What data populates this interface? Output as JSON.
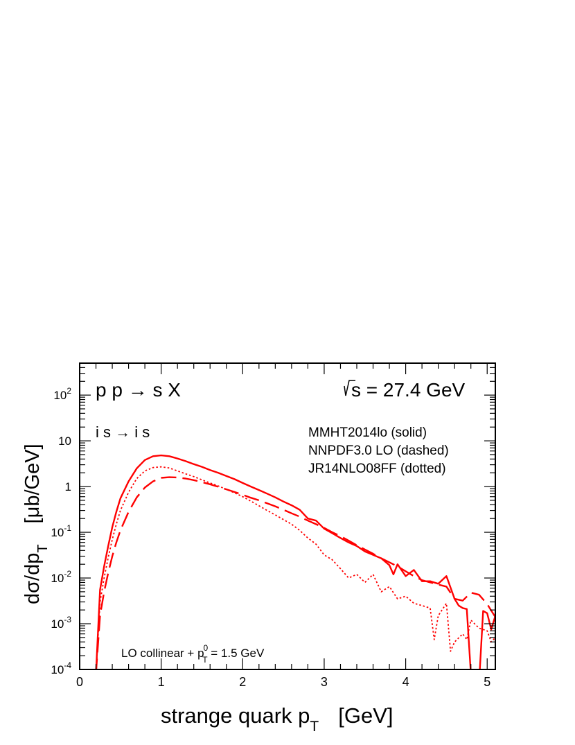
{
  "chart_data": {
    "type": "line",
    "title": "p p → s X",
    "energy_label": "s = 27.4 GeV",
    "subprocess_label": "i s → i s",
    "legend": [
      "MMHT2014lo  (solid)",
      "NNPDF3.0 LO (dashed)",
      "JR14NLO08FF (dotted)"
    ],
    "note": {
      "prefix": "LO collinear + p",
      "sup": "0",
      "sub": "T",
      "suffix": " = 1.5 GeV"
    },
    "xlabel": {
      "main": "strange quark p",
      "sub": "T",
      "unit": "[GeV]"
    },
    "ylabel": {
      "main": "dσ/dp",
      "sub": "T",
      "unit": "[μb/GeV]"
    },
    "xlim": [
      0,
      5.1
    ],
    "ylim": [
      0.0001,
      500
    ],
    "yscale": "log",
    "xticks": [
      0,
      1,
      2,
      3,
      4,
      5
    ],
    "xtick_labels": [
      "0",
      "1",
      "2",
      "3",
      "4",
      "5"
    ],
    "ytick_labels": [
      {
        "base": "10",
        "exp": "-4",
        "value": 0.0001
      },
      {
        "base": "10",
        "exp": "-3",
        "value": 0.001
      },
      {
        "base": "10",
        "exp": "-2",
        "value": 0.01
      },
      {
        "base": "10",
        "exp": "-1",
        "value": 0.1
      },
      {
        "base": "1",
        "exp": "",
        "value": 1
      },
      {
        "base": "10",
        "exp": "",
        "value": 10
      },
      {
        "base": "10",
        "exp": "2",
        "value": 100
      }
    ],
    "color": "#ff0000",
    "series": [
      {
        "style": "solid",
        "x": [
          0.2,
          0.25,
          0.3,
          0.35,
          0.4,
          0.45,
          0.5,
          0.6,
          0.7,
          0.8,
          0.9,
          1.0,
          1.1,
          1.2,
          1.3,
          1.4,
          1.5,
          1.6,
          1.7,
          1.8,
          1.9,
          2.0,
          2.1,
          2.2,
          2.3,
          2.4,
          2.5,
          2.6,
          2.7,
          2.8,
          2.9,
          3.0,
          3.1,
          3.2,
          3.3,
          3.4,
          3.5,
          3.6,
          3.7,
          3.8,
          3.85,
          3.9,
          4.0,
          4.1,
          4.2,
          4.3,
          4.4,
          4.5,
          4.6,
          4.65,
          4.7,
          4.75,
          4.8,
          4.85,
          4.9,
          4.95,
          5.0,
          5.05,
          5.1
        ],
        "y": [
          8e-05,
          0.0055,
          0.018,
          0.05,
          0.13,
          0.28,
          0.55,
          1.3,
          2.5,
          3.8,
          4.6,
          4.8,
          4.6,
          4.1,
          3.6,
          3.1,
          2.7,
          2.3,
          2.0,
          1.7,
          1.45,
          1.2,
          1.0,
          0.84,
          0.7,
          0.58,
          0.47,
          0.39,
          0.31,
          0.2,
          0.18,
          0.12,
          0.095,
          0.075,
          0.06,
          0.05,
          0.038,
          0.032,
          0.027,
          0.019,
          0.012,
          0.02,
          0.011,
          0.015,
          0.0085,
          0.0085,
          0.0075,
          0.011,
          0.0035,
          0.0025,
          0.0022,
          0.0021,
          8e-05,
          5e-05,
          5e-05,
          0.0019,
          0.0017,
          0.00075,
          0.0015
        ]
      },
      {
        "style": "dashed",
        "x": [
          0.2,
          0.25,
          0.3,
          0.35,
          0.4,
          0.45,
          0.5,
          0.6,
          0.7,
          0.8,
          0.9,
          1.0,
          1.1,
          1.2,
          1.3,
          1.4,
          1.5,
          1.6,
          1.7,
          1.8,
          1.9,
          2.0,
          2.1,
          2.2,
          2.3,
          2.4,
          2.5,
          2.6,
          2.7,
          2.8,
          2.9,
          3.0,
          3.1,
          3.2,
          3.3,
          3.4,
          3.5,
          3.6,
          3.7,
          3.8,
          3.9,
          4.0,
          4.1,
          4.2,
          4.3,
          4.4,
          4.5,
          4.6,
          4.7,
          4.8,
          4.9,
          5.0,
          5.1
        ],
        "y": [
          8e-05,
          0.0015,
          0.005,
          0.013,
          0.03,
          0.06,
          0.11,
          0.28,
          0.58,
          0.95,
          1.3,
          1.55,
          1.6,
          1.58,
          1.5,
          1.38,
          1.25,
          1.12,
          0.99,
          0.87,
          0.76,
          0.66,
          0.57,
          0.5,
          0.43,
          0.37,
          0.31,
          0.26,
          0.22,
          0.18,
          0.15,
          0.125,
          0.1,
          0.082,
          0.066,
          0.052,
          0.042,
          0.034,
          0.027,
          0.022,
          0.018,
          0.014,
          0.011,
          0.009,
          0.008,
          0.0072,
          0.0065,
          0.0035,
          0.0032,
          0.0048,
          0.0043,
          0.0027,
          0.0014
        ]
      },
      {
        "style": "dotted",
        "x": [
          0.2,
          0.25,
          0.3,
          0.35,
          0.4,
          0.45,
          0.5,
          0.6,
          0.7,
          0.8,
          0.9,
          1.0,
          1.1,
          1.2,
          1.3,
          1.4,
          1.5,
          1.6,
          1.7,
          1.8,
          1.9,
          2.0,
          2.1,
          2.2,
          2.3,
          2.4,
          2.5,
          2.6,
          2.7,
          2.8,
          2.9,
          3.0,
          3.1,
          3.2,
          3.3,
          3.4,
          3.5,
          3.6,
          3.7,
          3.8,
          3.9,
          4.0,
          4.1,
          4.2,
          4.3,
          4.35,
          4.4,
          4.5,
          4.55,
          4.6,
          4.7,
          4.75,
          4.8,
          4.9,
          5.0,
          5.05,
          5.1
        ],
        "y": [
          8e-05,
          0.003,
          0.01,
          0.028,
          0.07,
          0.15,
          0.3,
          0.75,
          1.5,
          2.2,
          2.6,
          2.7,
          2.55,
          2.2,
          1.9,
          1.65,
          1.4,
          1.2,
          1.03,
          0.87,
          0.73,
          0.6,
          0.48,
          0.38,
          0.3,
          0.24,
          0.19,
          0.15,
          0.11,
          0.075,
          0.055,
          0.032,
          0.025,
          0.016,
          0.01,
          0.012,
          0.008,
          0.012,
          0.005,
          0.0065,
          0.0035,
          0.004,
          0.0028,
          0.0025,
          0.0022,
          0.00045,
          0.0015,
          0.0028,
          0.00025,
          0.0004,
          0.0006,
          0.00045,
          0.0012,
          0.0008,
          0.0007,
          0.0004,
          0.0005
        ]
      }
    ]
  }
}
